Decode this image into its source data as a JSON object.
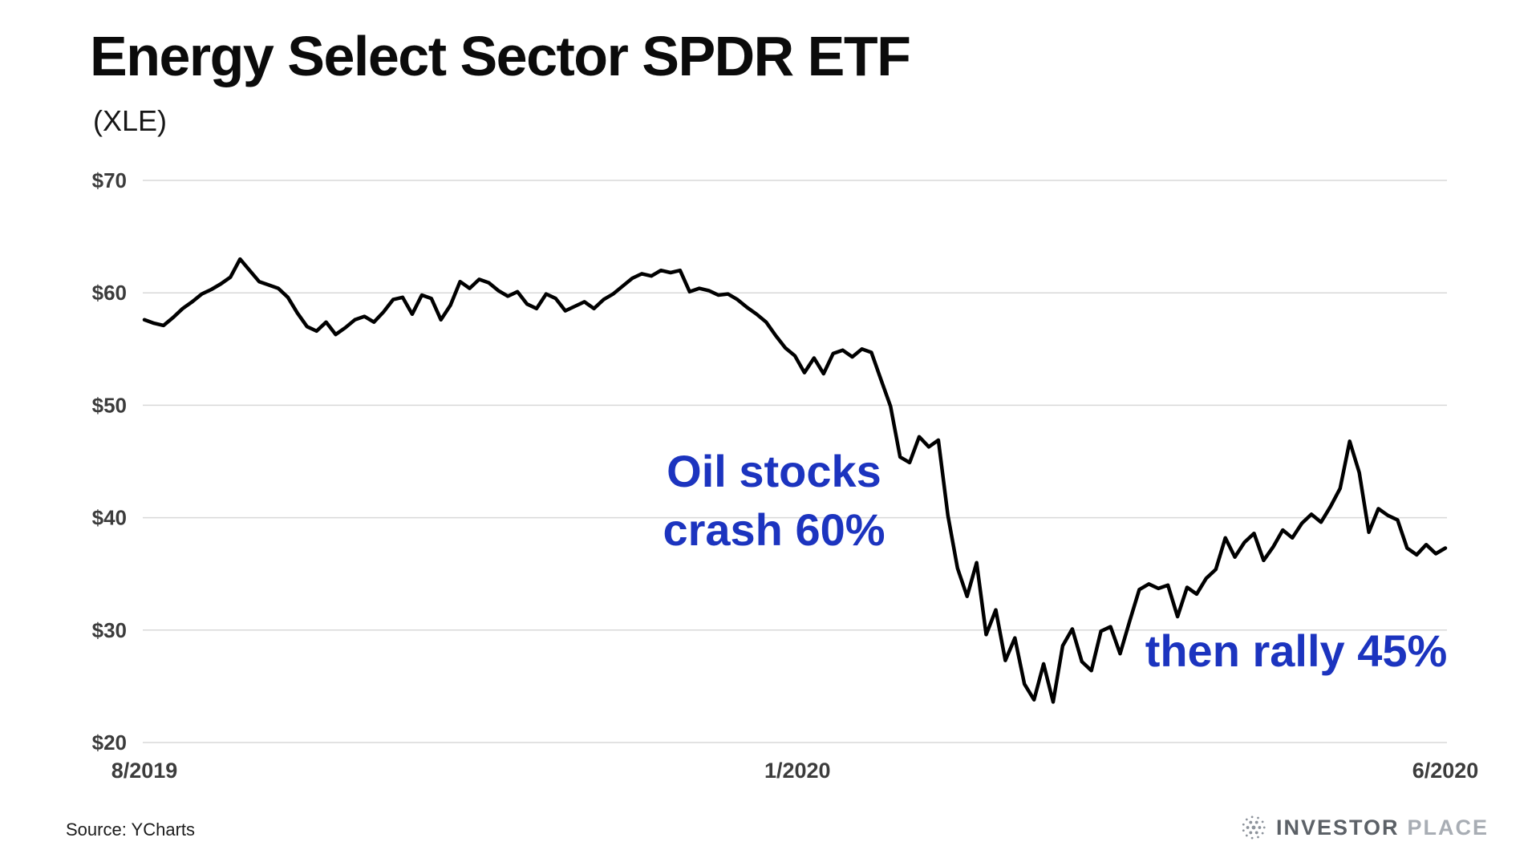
{
  "page": {
    "title": "Energy Select Sector SPDR ETF",
    "subtitle": "(XLE)",
    "source": "Source: YCharts",
    "logo": {
      "icon": "globe-dots-icon",
      "part1": "INVESTOR",
      "part2": "PLACE"
    }
  },
  "colors": {
    "background": "#ffffff",
    "line": "#000000",
    "grid": "#d8d8d8",
    "axis_text": "#3c3c3c",
    "annotation": "#1c34bf",
    "logo_dark": "#5c6167",
    "logo_light": "#a8adb4",
    "logo_icon": "#8d939b"
  },
  "chart_data": {
    "type": "line",
    "title": "Energy Select Sector SPDR ETF (XLE)",
    "xlabel": "",
    "ylabel": "",
    "ylim": [
      20,
      70
    ],
    "grid": true,
    "legend": false,
    "yticks": [
      {
        "value": 70,
        "label": "$70"
      },
      {
        "value": 60,
        "label": "$60"
      },
      {
        "value": 50,
        "label": "$50"
      },
      {
        "value": 40,
        "label": "$40"
      },
      {
        "value": 30,
        "label": "$30"
      },
      {
        "value": 20,
        "label": "$20"
      }
    ],
    "xticks": [
      {
        "pos": 0.0,
        "label": "8/2019"
      },
      {
        "pos": 0.502,
        "label": "1/2020"
      },
      {
        "pos": 1.0,
        "label": "6/2020"
      }
    ],
    "series": [
      {
        "name": "XLE share price (USD)",
        "values": [
          57.6,
          57.3,
          57.1,
          57.8,
          58.6,
          59.2,
          59.9,
          60.3,
          60.8,
          61.4,
          63.0,
          62.0,
          61.0,
          60.7,
          60.4,
          59.6,
          58.2,
          57.0,
          56.6,
          57.4,
          56.3,
          56.9,
          57.6,
          57.9,
          57.4,
          58.3,
          59.4,
          59.6,
          58.1,
          59.8,
          59.5,
          57.6,
          58.9,
          61.0,
          60.4,
          61.2,
          60.9,
          60.2,
          59.7,
          60.1,
          59.0,
          58.6,
          59.9,
          59.5,
          58.4,
          58.8,
          59.2,
          58.6,
          59.4,
          59.9,
          60.6,
          61.3,
          61.7,
          61.5,
          62.0,
          61.8,
          62.0,
          60.1,
          60.4,
          60.2,
          59.8,
          59.9,
          59.4,
          58.7,
          58.1,
          57.4,
          56.2,
          55.1,
          54.4,
          52.9,
          54.2,
          52.8,
          54.6,
          54.9,
          54.3,
          55.0,
          54.7,
          52.3,
          49.9,
          45.4,
          44.9,
          47.2,
          46.3,
          46.9,
          40.2,
          35.5,
          33.0,
          36.0,
          29.6,
          31.8,
          27.3,
          29.3,
          25.2,
          23.8,
          27.0,
          23.6,
          28.6,
          30.1,
          27.2,
          26.4,
          29.9,
          30.3,
          27.9,
          30.8,
          33.6,
          34.1,
          33.7,
          34.0,
          31.2,
          33.8,
          33.2,
          34.6,
          35.4,
          38.2,
          36.5,
          37.8,
          38.6,
          36.2,
          37.4,
          38.9,
          38.2,
          39.5,
          40.3,
          39.6,
          41.0,
          42.6,
          46.8,
          44.0,
          38.7,
          40.8,
          40.2,
          39.8,
          37.3,
          36.7,
          37.6,
          36.8,
          37.3
        ]
      }
    ],
    "annotations": [
      {
        "lines": [
          "Oil stocks",
          "crash 60%"
        ]
      },
      {
        "lines": [
          "then rally 45%"
        ]
      }
    ]
  }
}
